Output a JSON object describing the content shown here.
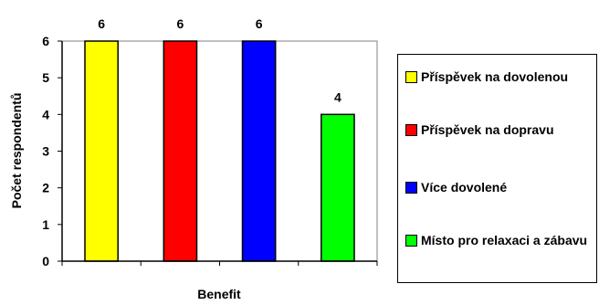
{
  "chart_data": {
    "type": "bar",
    "categories": [
      "Příspěvek na dovolenou",
      "Příspěvek na dopravu",
      "Více dovolené",
      "Místo pro relaxaci a zábavu"
    ],
    "values": [
      6,
      6,
      6,
      4
    ],
    "data_labels": [
      "6",
      "6",
      "6",
      "4"
    ],
    "colors": [
      "#ffff00",
      "#ff0000",
      "#0000ff",
      "#00ff00"
    ],
    "xlabel": "Benefit",
    "ylabel": "Počet respondentů",
    "ylim": [
      0,
      6
    ],
    "yticks": [
      "0",
      "1",
      "2",
      "3",
      "4",
      "5",
      "6"
    ],
    "grid": false,
    "legend": {
      "placement": "right",
      "entries": [
        "Příspěvek na dovolenou",
        "Příspěvek na dopravu",
        "Více dovolené",
        "Místo pro relaxaci a zábavu"
      ]
    }
  }
}
